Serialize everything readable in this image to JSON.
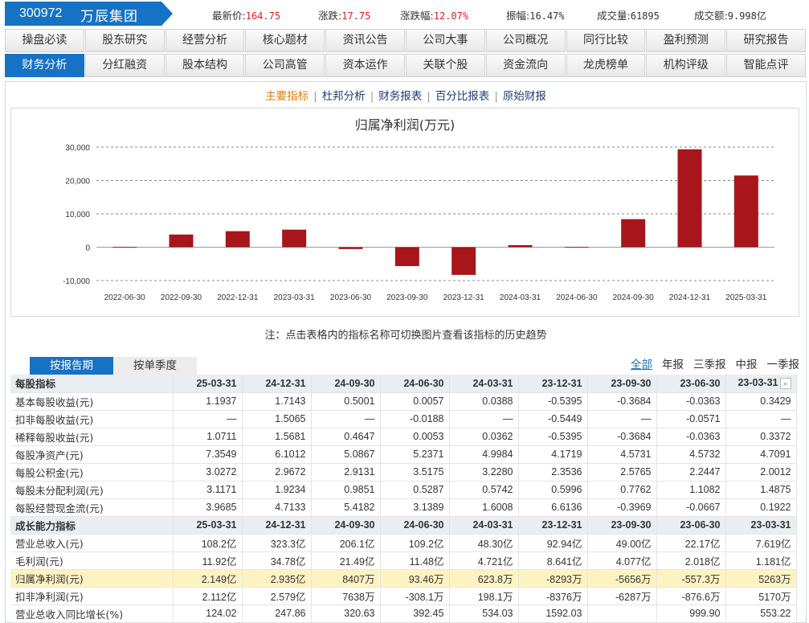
{
  "header": {
    "code": "300972",
    "name": "万辰集团",
    "quotes": [
      {
        "label": "最新价:",
        "value": "164.75"
      },
      {
        "label": "涨跌:",
        "value": "17.75"
      },
      {
        "label": "涨跌幅:",
        "value": "12.07%"
      },
      {
        "label": "振幅:",
        "value": "16.47%"
      },
      {
        "label": "成交量:",
        "value": "61895"
      },
      {
        "label": "成交额:",
        "value": "9.998亿"
      }
    ]
  },
  "nav": {
    "row1": [
      "操盘必读",
      "股东研究",
      "经营分析",
      "核心题材",
      "资讯公告",
      "公司大事",
      "公司概况",
      "同行比较",
      "盈利预测",
      "研究报告"
    ],
    "row2": [
      "财务分析",
      "分红融资",
      "股本结构",
      "公司高管",
      "资本运作",
      "关联个股",
      "资金流向",
      "龙虎榜单",
      "机构评级",
      "智能点评"
    ]
  },
  "subnav": [
    "主要指标",
    "杜邦分析",
    "财务报表",
    "百分比报表",
    "原始财报"
  ],
  "chart_data": {
    "type": "bar",
    "title": "归属净利润(万元)",
    "categories": [
      "2022-06-30",
      "2022-09-30",
      "2022-12-31",
      "2023-03-31",
      "2023-06-30",
      "2023-09-30",
      "2023-12-31",
      "2024-03-31",
      "2024-06-30",
      "2024-09-30",
      "2024-12-31",
      "2025-03-31"
    ],
    "values": [
      100,
      3800,
      4800,
      5263,
      -557.3,
      -5656,
      -8293,
      623.8,
      93.46,
      8407,
      29350,
      21490
    ],
    "ylim": [
      -10000,
      30000
    ],
    "yticks": [
      "-10,000",
      "0",
      "10,000",
      "20,000",
      "30,000"
    ],
    "ytick_values": [
      -10000,
      0,
      10000,
      20000,
      30000
    ],
    "grid": true,
    "bar_color": "#a8151a"
  },
  "note": "注：点击表格内的指标名称可切换图片查看该指标的历史趋势",
  "tabs": [
    "按报告期",
    "按单季度"
  ],
  "filters": [
    "全部",
    "年报",
    "三季报",
    "中报",
    "一季报"
  ],
  "table": {
    "sections": [
      {
        "title": "每股指标",
        "periods": [
          "25-03-31",
          "24-12-31",
          "24-09-30",
          "24-06-30",
          "24-03-31",
          "23-12-31",
          "23-09-30",
          "23-06-30",
          "23-03-31"
        ],
        "rows": [
          {
            "name": "基本每股收益(元)",
            "values": [
              "1.1937",
              "1.7143",
              "0.5001",
              "0.0057",
              "0.0388",
              "-0.5395",
              "-0.3684",
              "-0.0363",
              "0.3429"
            ]
          },
          {
            "name": "扣非每股收益(元)",
            "values": [
              "—",
              "1.5065",
              "—",
              "-0.0188",
              "—",
              "-0.5449",
              "—",
              "-0.0571",
              "—"
            ]
          },
          {
            "name": "稀释每股收益(元)",
            "values": [
              "1.0711",
              "1.5681",
              "0.4647",
              "0.0053",
              "0.0362",
              "-0.5395",
              "-0.3684",
              "-0.0363",
              "0.3372"
            ]
          },
          {
            "name": "每股净资产(元)",
            "values": [
              "7.3549",
              "6.1012",
              "5.0867",
              "5.2371",
              "4.9984",
              "4.1719",
              "4.5731",
              "4.5732",
              "4.7091"
            ]
          },
          {
            "name": "每股公积金(元)",
            "values": [
              "3.0272",
              "2.9672",
              "2.9131",
              "3.5175",
              "3.2280",
              "2.3536",
              "2.5765",
              "2.2447",
              "2.0012"
            ]
          },
          {
            "name": "每股未分配利润(元)",
            "values": [
              "3.1171",
              "1.9234",
              "0.9851",
              "0.5287",
              "0.5742",
              "0.5996",
              "0.7762",
              "1.1082",
              "1.4875"
            ]
          },
          {
            "name": "每股经营现金流(元)",
            "values": [
              "3.9685",
              "4.7133",
              "5.4182",
              "3.1389",
              "1.6008",
              "6.6136",
              "-0.3969",
              "-0.0667",
              "0.1922"
            ]
          }
        ]
      },
      {
        "title": "成长能力指标",
        "periods": [
          "25-03-31",
          "24-12-31",
          "24-09-30",
          "24-06-30",
          "24-03-31",
          "23-12-31",
          "23-09-30",
          "23-06-30",
          "23-03-31"
        ],
        "rows": [
          {
            "name": "营业总收入(元)",
            "values": [
              "108.2亿",
              "323.3亿",
              "206.1亿",
              "109.2亿",
              "48.30亿",
              "92.94亿",
              "49.00亿",
              "22.17亿",
              "7.619亿"
            ]
          },
          {
            "name": "毛利润(元)",
            "values": [
              "11.92亿",
              "34.78亿",
              "21.49亿",
              "11.48亿",
              "4.721亿",
              "8.641亿",
              "4.077亿",
              "2.018亿",
              "1.181亿"
            ]
          },
          {
            "name": "归属净利润(元)",
            "values": [
              "2.149亿",
              "2.935亿",
              "8407万",
              "93.46万",
              "623.8万",
              "-8293万",
              "-5656万",
              "-557.3万",
              "5263万"
            ],
            "highlight": true
          },
          {
            "name": "扣非净利润(元)",
            "values": [
              "2.112亿",
              "2.579亿",
              "7638万",
              "-308.1万",
              "198.1万",
              "-8376万",
              "-6287万",
              "-876.6万",
              "5170万"
            ]
          },
          {
            "name": "营业总收入同比增长(%)",
            "values": [
              "124.02",
              "247.86",
              "320.63",
              "392.45",
              "534.03",
              "1592.03",
              "",
              "999.90",
              "553.22"
            ]
          }
        ]
      }
    ]
  }
}
